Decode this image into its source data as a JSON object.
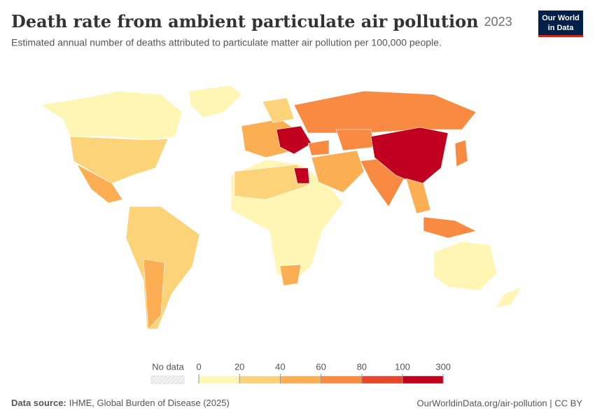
{
  "header": {
    "title": "Death rate from ambient particulate air pollution",
    "year": "2023",
    "subtitle": "Estimated annual number of deaths attributed to particulate matter air pollution per 100,000 people.",
    "logo": [
      "Our World",
      "in Data"
    ]
  },
  "legend": {
    "no_data": "No data",
    "ticks": [
      0,
      20,
      40,
      60,
      80,
      100,
      300
    ],
    "colors": [
      "#fff6b5",
      "#fdd37a",
      "#fbae52",
      "#f98a41",
      "#e8462a",
      "#c0001e"
    ]
  },
  "footer": {
    "source_label": "Data source:",
    "source": "IHME, Global Burden of Disease (2025)",
    "link": "OurWorldinData.org/air-pollution | CC BY"
  }
}
